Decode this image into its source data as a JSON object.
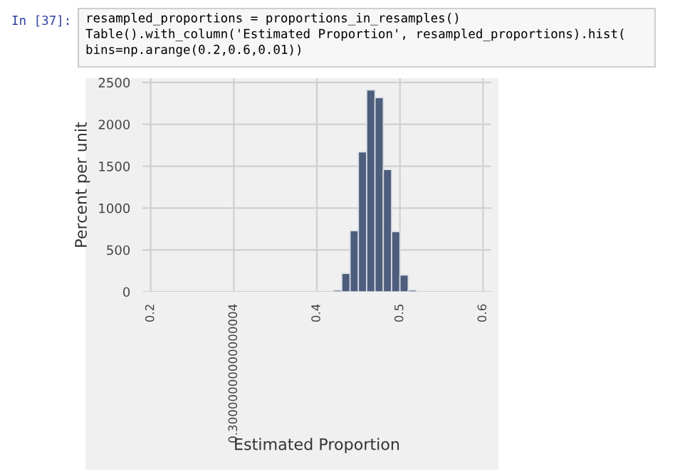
{
  "chart_data": {
    "type": "histogram",
    "xlabel": "Estimated Proportion",
    "ylabel": "Percent per unit",
    "bins": [
      0.42,
      0.43,
      0.44,
      0.45,
      0.46,
      0.47,
      0.48,
      0.49,
      0.5,
      0.51,
      0.52
    ],
    "values": [
      20,
      220,
      730,
      1670,
      2410,
      2320,
      1460,
      720,
      200,
      20
    ],
    "color": "#4d5e7d",
    "xlim": [
      0.19,
      0.61
    ],
    "xticks": [
      0.2,
      {
        "value": 0.3,
        "label": "0.30000000000000004"
      },
      0.4,
      0.5,
      0.6
    ],
    "ylim": [
      0,
      2550
    ],
    "yticks": [
      0,
      500,
      1000,
      1500,
      2000,
      2500
    ],
    "grid": true,
    "annotations": [
      "In [37]:",
      "resampled_proportions = proportions_in_resamples()\nTable().with_column('Estimated Proportion', resampled_proportions).hist(\nbins=np.arange(0.2,0.6,0.01))"
    ]
  }
}
